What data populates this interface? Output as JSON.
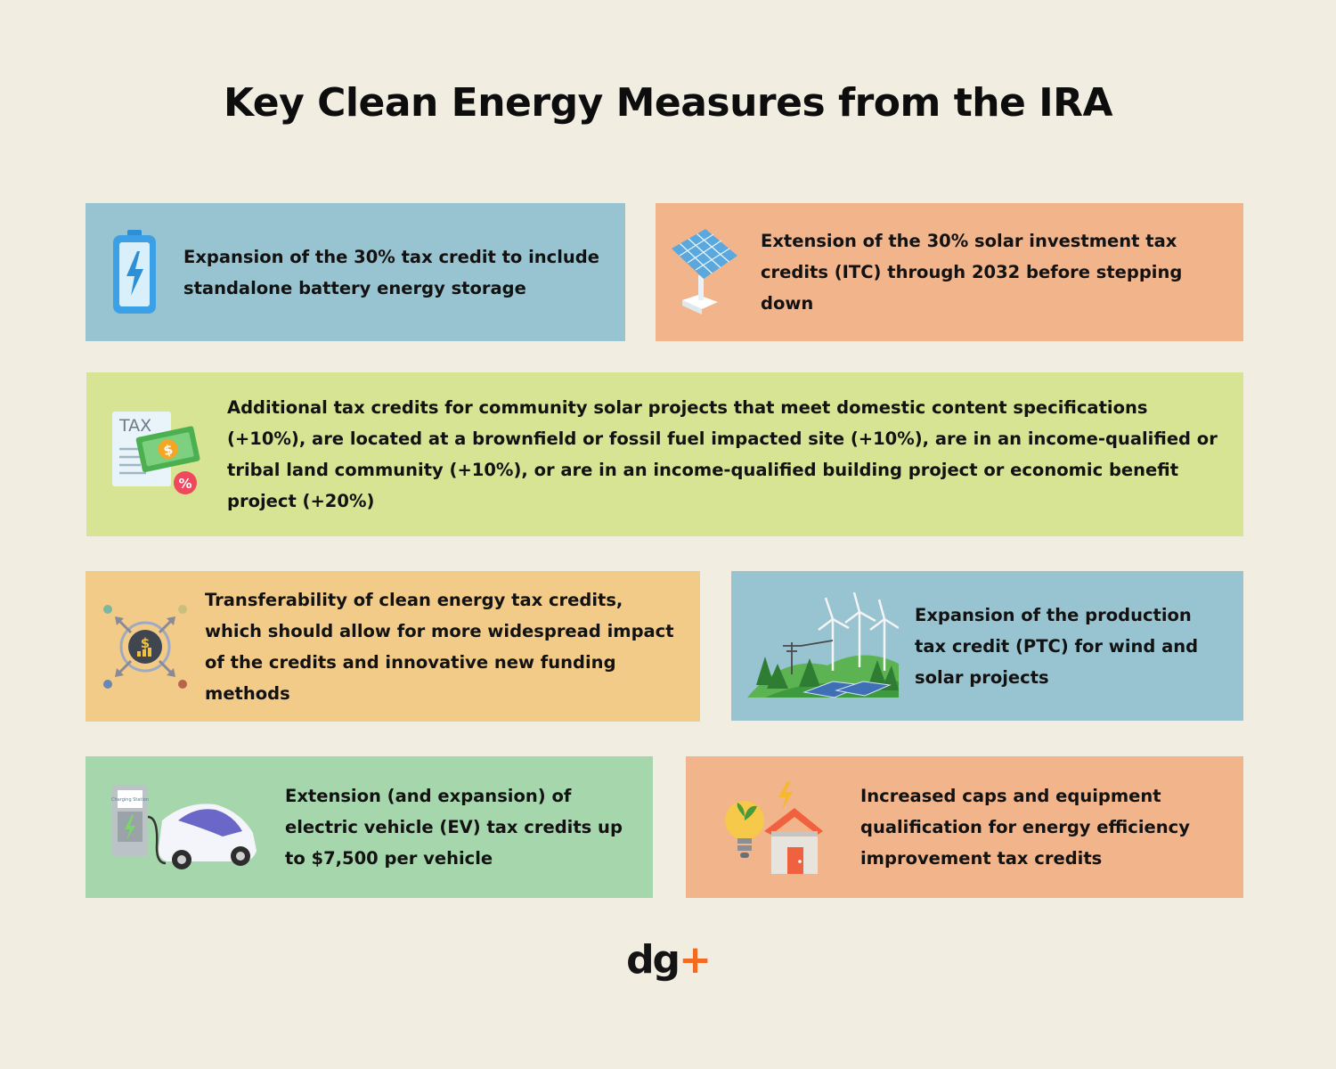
{
  "title": "Key Clean Energy Measures from the IRA",
  "cards": [
    {
      "text": "Expansion of the 30% tax credit to include standalone battery energy storage",
      "icon": "battery-icon",
      "color": "#98c3d0"
    },
    {
      "text": "Extension of the 30% solar investment tax credits (ITC) through 2032 before stepping down",
      "icon": "solar-panel-icon",
      "color": "#f1b48b"
    },
    {
      "text": "Additional tax credits for community solar projects that meet domestic content specifications (+10%), are located at a brownfield or fossil fuel impacted site (+10%), are in an income-qualified or tribal land community (+10%), or are in an income-qualified building project or economic benefit project (+20%)",
      "icon": "tax-money-icon",
      "color": "#d7e493"
    },
    {
      "text": "Transferability of clean energy tax credits, which should allow for more widespread impact of the credits and innovative new funding methods",
      "icon": "money-transfer-icon",
      "color": "#f2cb88"
    },
    {
      "text": "Expansion of the production tax credit (PTC) for wind and solar projects",
      "icon": "wind-solar-landscape-icon",
      "color": "#98c3d0"
    },
    {
      "text": "Extension (and expansion) of electric vehicle (EV) tax credits up to $7,500 per vehicle",
      "icon": "ev-charging-icon",
      "color": "#a6d6ac"
    },
    {
      "text": "Increased caps and equipment qualification for energy efficiency improvement tax credits",
      "icon": "efficient-home-icon",
      "color": "#f1b48b"
    }
  ],
  "icon_texts": {
    "tax": "TAX",
    "dollar": "$",
    "percent": "%",
    "charging": "Charging Station"
  },
  "logo": {
    "main": "dg",
    "accent": "+"
  }
}
